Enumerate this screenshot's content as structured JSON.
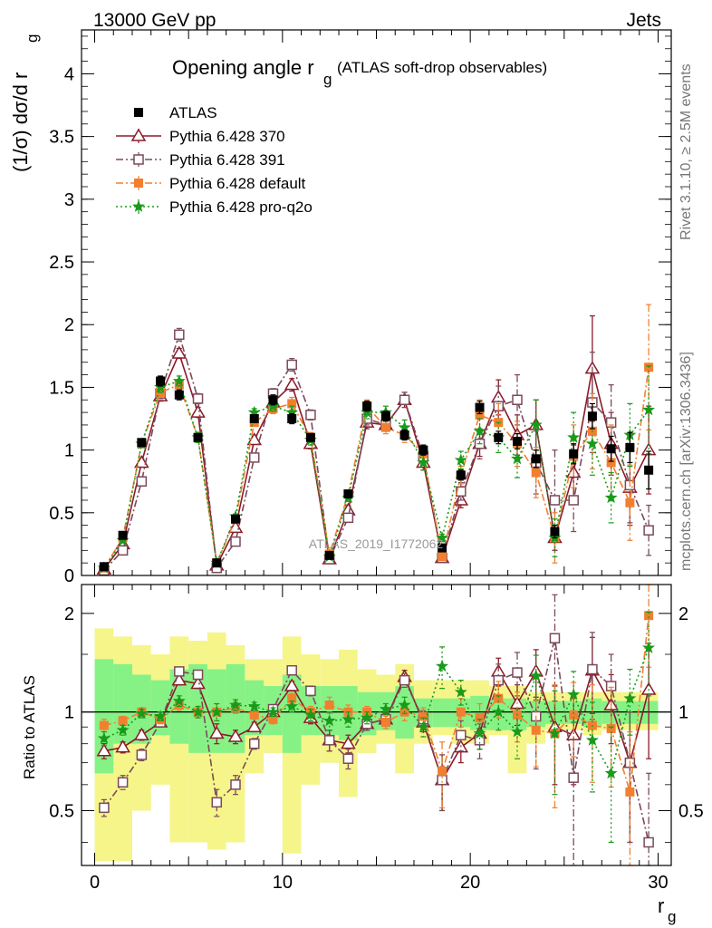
{
  "header": {
    "left": "13000 GeV pp",
    "right": "Jets"
  },
  "side_text": {
    "top": "Rivet 3.1.10, ≥ 2.5M events",
    "bottom": "mcplots.cern.ch [arXiv:1306.3436]"
  },
  "watermark": "ATLAS_2019_I1772062",
  "chart_data": [
    {
      "type": "line",
      "title": "Opening angle r",
      "title_sub": "g",
      "title_suffix": "(ATLAS soft-drop observables)",
      "ylabel": "(1/σ) dσ/d r",
      "ylabel_sub": "g",
      "ylim": [
        0,
        4.35
      ],
      "yticks": [
        0,
        0.5,
        1,
        1.5,
        2,
        2.5,
        3,
        3.5,
        4
      ],
      "ytick_labels": [
        "0",
        "0.5",
        "1",
        "1.5",
        "2",
        "2.5",
        "3",
        "3.5",
        "4"
      ],
      "xlim": [
        -0.7,
        30.7
      ],
      "x": [
        0.5,
        1.5,
        2.5,
        3.5,
        4.5,
        5.5,
        6.5,
        7.5,
        8.5,
        9.5,
        10.5,
        11.5,
        12.5,
        13.5,
        14.5,
        15.5,
        16.5,
        17.5,
        18.5,
        19.5,
        20.5,
        21.5,
        22.5,
        23.5,
        24.5,
        25.5,
        26.5,
        27.5,
        28.5,
        29.5
      ],
      "series": [
        {
          "name": "ATLAS",
          "color": "#000000",
          "marker": "square-filled",
          "line": "none",
          "values": [
            0.07,
            0.32,
            1.06,
            1.55,
            1.44,
            1.1,
            0.1,
            0.45,
            1.25,
            1.4,
            1.25,
            1.1,
            0.16,
            0.65,
            1.35,
            1.27,
            1.12,
            1.0,
            0.22,
            0.8,
            1.34,
            1.1,
            1.07,
            0.93,
            0.35,
            0.97,
            1.27,
            1.01,
            1.02,
            0.84
          ],
          "errors": [
            0.01,
            0.02,
            0.03,
            0.04,
            0.04,
            0.03,
            0.01,
            0.02,
            0.03,
            0.04,
            0.04,
            0.03,
            0.01,
            0.03,
            0.04,
            0.04,
            0.04,
            0.04,
            0.02,
            0.04,
            0.05,
            0.05,
            0.06,
            0.07,
            0.05,
            0.08,
            0.1,
            0.1,
            0.12,
            0.15
          ]
        },
        {
          "name": "Pythia 6.428 370",
          "color": "#8b1a2a",
          "marker": "triangle-open",
          "line": "solid",
          "values": [
            0.05,
            0.25,
            0.9,
            1.43,
            1.77,
            1.3,
            0.08,
            0.38,
            1.08,
            1.38,
            1.52,
            1.05,
            0.13,
            0.52,
            1.22,
            1.2,
            1.4,
            0.9,
            0.14,
            0.6,
            1.05,
            1.42,
            1.12,
            1.2,
            0.3,
            0.82,
            1.65,
            1.05,
            0.7,
            1.0
          ],
          "errors": [
            0.01,
            0.02,
            0.03,
            0.04,
            0.04,
            0.04,
            0.01,
            0.02,
            0.03,
            0.04,
            0.05,
            0.04,
            0.01,
            0.03,
            0.05,
            0.05,
            0.06,
            0.06,
            0.03,
            0.06,
            0.1,
            0.14,
            0.16,
            0.2,
            0.1,
            0.22,
            0.42,
            0.25,
            0.3,
            0.35
          ]
        },
        {
          "name": "Pythia 6.428 391",
          "color": "#7a4a5a",
          "marker": "square-open",
          "line": "dashdot",
          "values": [
            0.04,
            0.2,
            0.75,
            1.45,
            1.92,
            1.41,
            0.06,
            0.27,
            0.94,
            1.45,
            1.68,
            1.28,
            0.13,
            0.46,
            1.25,
            1.2,
            1.4,
            0.95,
            0.14,
            0.67,
            1.05,
            1.35,
            1.4,
            0.9,
            0.6,
            0.6,
            1.38,
            1.22,
            0.72,
            0.36
          ],
          "errors": [
            0.01,
            0.02,
            0.03,
            0.04,
            0.05,
            0.04,
            0.01,
            0.02,
            0.03,
            0.04,
            0.05,
            0.04,
            0.01,
            0.03,
            0.05,
            0.05,
            0.06,
            0.06,
            0.03,
            0.07,
            0.12,
            0.16,
            0.2,
            0.25,
            0.4,
            0.25,
            0.4,
            0.3,
            0.3,
            0.2
          ]
        },
        {
          "name": "Pythia 6.428 default",
          "color": "#f08030",
          "marker": "square-filled",
          "line": "dashdot",
          "values": [
            0.06,
            0.3,
            1.05,
            1.46,
            1.52,
            1.1,
            0.1,
            0.45,
            1.22,
            1.33,
            1.37,
            1.1,
            0.17,
            0.65,
            1.35,
            1.18,
            1.12,
            0.97,
            0.15,
            0.8,
            1.28,
            1.22,
            1.05,
            0.82,
            0.3,
            0.95,
            1.15,
            0.9,
            0.58,
            1.66
          ],
          "errors": [
            0.01,
            0.02,
            0.03,
            0.04,
            0.04,
            0.04,
            0.01,
            0.02,
            0.03,
            0.04,
            0.05,
            0.04,
            0.01,
            0.03,
            0.05,
            0.05,
            0.06,
            0.06,
            0.03,
            0.07,
            0.12,
            0.15,
            0.18,
            0.2,
            0.2,
            0.25,
            0.3,
            0.3,
            0.3,
            0.5
          ]
        },
        {
          "name": "Pythia 6.428 pro-q2o",
          "color": "#1a9a1a",
          "marker": "star",
          "line": "dotted",
          "values": [
            0.06,
            0.28,
            1.05,
            1.5,
            1.55,
            1.1,
            0.1,
            0.47,
            1.3,
            1.35,
            1.3,
            1.08,
            0.15,
            0.62,
            1.3,
            1.3,
            1.18,
            0.9,
            0.3,
            0.92,
            1.15,
            1.1,
            0.93,
            1.2,
            0.3,
            1.1,
            1.05,
            0.62,
            1.12,
            1.32
          ],
          "errors": [
            0.01,
            0.02,
            0.03,
            0.04,
            0.04,
            0.04,
            0.01,
            0.02,
            0.03,
            0.04,
            0.05,
            0.04,
            0.01,
            0.03,
            0.05,
            0.05,
            0.06,
            0.06,
            0.03,
            0.07,
            0.1,
            0.12,
            0.15,
            0.2,
            0.15,
            0.2,
            0.25,
            0.2,
            0.25,
            0.35
          ]
        }
      ]
    },
    {
      "type": "line",
      "ylabel": "Ratio to ATLAS",
      "xlabel": "r",
      "xlabel_sub": "g",
      "xticks": [
        0,
        10,
        20,
        30
      ],
      "xtick_labels": [
        "0",
        "10",
        "20",
        "30"
      ],
      "xlim": [
        -0.7,
        30.7
      ],
      "ylim": [
        0.34,
        2.45
      ],
      "log_scale": true,
      "yticks": [
        0.5,
        1,
        2
      ],
      "ytick_labels": [
        "0.5",
        "1",
        "2"
      ],
      "reference_line": 1,
      "x": [
        0.5,
        1.5,
        2.5,
        3.5,
        4.5,
        5.5,
        6.5,
        7.5,
        8.5,
        9.5,
        10.5,
        11.5,
        12.5,
        13.5,
        14.5,
        15.5,
        16.5,
        17.5,
        18.5,
        19.5,
        20.5,
        21.5,
        22.5,
        23.5,
        24.5,
        25.5,
        26.5,
        27.5,
        28.5,
        29.5
      ],
      "band_inner": {
        "color": "#86f286",
        "low": [
          0.65,
          0.8,
          0.8,
          0.85,
          0.8,
          0.75,
          0.75,
          0.75,
          0.85,
          0.85,
          0.75,
          0.85,
          0.85,
          0.82,
          0.85,
          0.88,
          0.83,
          0.9,
          0.9,
          0.9,
          0.88,
          0.88,
          0.88,
          0.9,
          0.92,
          0.92,
          0.9,
          0.92,
          0.92,
          0.92
        ],
        "high": [
          1.45,
          1.4,
          1.3,
          1.25,
          1.35,
          1.4,
          1.35,
          1.4,
          1.25,
          1.2,
          1.3,
          1.2,
          1.2,
          1.2,
          1.15,
          1.15,
          1.2,
          1.1,
          1.1,
          1.1,
          1.12,
          1.1,
          1.1,
          1.08,
          1.08,
          1.08,
          1.1,
          1.08,
          1.08,
          1.08
        ]
      },
      "band_outer": {
        "color": "#f5f58a",
        "low": [
          0.35,
          0.35,
          0.5,
          0.6,
          0.4,
          0.4,
          0.38,
          0.4,
          0.65,
          0.75,
          0.37,
          0.6,
          0.7,
          0.55,
          0.75,
          0.8,
          0.65,
          0.8,
          0.85,
          0.8,
          0.8,
          0.85,
          0.65,
          0.8,
          0.88,
          0.88,
          0.85,
          0.88,
          0.88,
          0.88
        ],
        "high": [
          1.8,
          1.7,
          1.6,
          1.5,
          1.7,
          1.65,
          1.75,
          1.6,
          1.45,
          1.45,
          1.7,
          1.5,
          1.45,
          1.55,
          1.35,
          1.3,
          1.4,
          1.25,
          1.25,
          1.25,
          1.25,
          1.2,
          1.2,
          1.15,
          1.15,
          1.15,
          1.15,
          1.15,
          1.15,
          1.15
        ]
      },
      "series": [
        {
          "name": "Pythia 6.428 370",
          "color": "#8b1a2a",
          "marker": "triangle-open",
          "line": "solid",
          "values": [
            0.76,
            0.78,
            0.85,
            0.93,
            1.25,
            1.22,
            0.86,
            0.84,
            0.9,
            1.0,
            1.2,
            0.96,
            0.82,
            0.8,
            0.92,
            0.95,
            1.28,
            0.93,
            0.62,
            0.78,
            0.86,
            1.33,
            1.06,
            1.33,
            0.9,
            0.85,
            1.34,
            1.05,
            0.7,
            1.17
          ],
          "errors": [
            0.04,
            0.03,
            0.03,
            0.03,
            0.04,
            0.04,
            0.06,
            0.04,
            0.03,
            0.03,
            0.04,
            0.04,
            0.06,
            0.05,
            0.04,
            0.04,
            0.06,
            0.06,
            0.12,
            0.08,
            0.09,
            0.13,
            0.15,
            0.22,
            0.3,
            0.25,
            0.35,
            0.25,
            0.3,
            0.45
          ]
        },
        {
          "name": "Pythia 6.428 391",
          "color": "#7a4a5a",
          "marker": "square-open",
          "line": "dashdot",
          "values": [
            0.51,
            0.61,
            0.74,
            0.93,
            1.33,
            1.3,
            0.53,
            0.6,
            0.8,
            1.02,
            1.34,
            1.16,
            0.82,
            0.72,
            0.92,
            0.95,
            1.25,
            0.95,
            0.62,
            0.85,
            0.82,
            1.25,
            1.32,
            0.97,
            1.68,
            0.63,
            1.35,
            1.2,
            0.7,
            0.4
          ],
          "errors": [
            0.03,
            0.03,
            0.03,
            0.03,
            0.04,
            0.04,
            0.05,
            0.04,
            0.03,
            0.03,
            0.04,
            0.04,
            0.06,
            0.05,
            0.04,
            0.04,
            0.06,
            0.06,
            0.12,
            0.09,
            0.1,
            0.15,
            0.2,
            0.3,
            0.6,
            0.3,
            0.4,
            0.3,
            0.3,
            0.25
          ]
        },
        {
          "name": "Pythia 6.428 default",
          "color": "#f08030",
          "marker": "square-filled",
          "line": "dashdot",
          "values": [
            0.91,
            0.94,
            1.0,
            0.95,
            1.05,
            1.0,
            1.0,
            1.03,
            0.98,
            0.95,
            1.1,
            1.0,
            1.05,
            1.0,
            1.0,
            0.93,
            1.0,
            0.97,
            0.66,
            1.0,
            0.96,
            1.1,
            0.98,
            0.88,
            0.86,
            0.98,
            0.91,
            0.89,
            0.57,
            1.97
          ],
          "errors": [
            0.04,
            0.03,
            0.03,
            0.03,
            0.04,
            0.04,
            0.06,
            0.04,
            0.03,
            0.03,
            0.04,
            0.04,
            0.06,
            0.05,
            0.04,
            0.04,
            0.06,
            0.06,
            0.15,
            0.1,
            0.1,
            0.14,
            0.17,
            0.2,
            0.35,
            0.25,
            0.3,
            0.3,
            0.3,
            0.6
          ]
        },
        {
          "name": "Pythia 6.428 pro-q2o",
          "color": "#1a9a1a",
          "marker": "star",
          "line": "dotted",
          "values": [
            0.83,
            0.88,
            0.99,
            0.97,
            1.08,
            1.0,
            1.0,
            1.05,
            1.04,
            1.0,
            1.04,
            0.98,
            0.94,
            0.95,
            0.96,
            1.02,
            1.05,
            0.9,
            1.38,
            1.15,
            0.86,
            1.0,
            0.87,
            1.29,
            0.86,
            1.13,
            0.82,
            0.65,
            1.1,
            1.57
          ],
          "errors": [
            0.04,
            0.03,
            0.03,
            0.03,
            0.04,
            0.04,
            0.06,
            0.04,
            0.03,
            0.03,
            0.04,
            0.04,
            0.06,
            0.05,
            0.04,
            0.04,
            0.06,
            0.06,
            0.2,
            0.1,
            0.09,
            0.12,
            0.15,
            0.2,
            0.3,
            0.2,
            0.25,
            0.25,
            0.25,
            0.45
          ]
        }
      ]
    }
  ]
}
